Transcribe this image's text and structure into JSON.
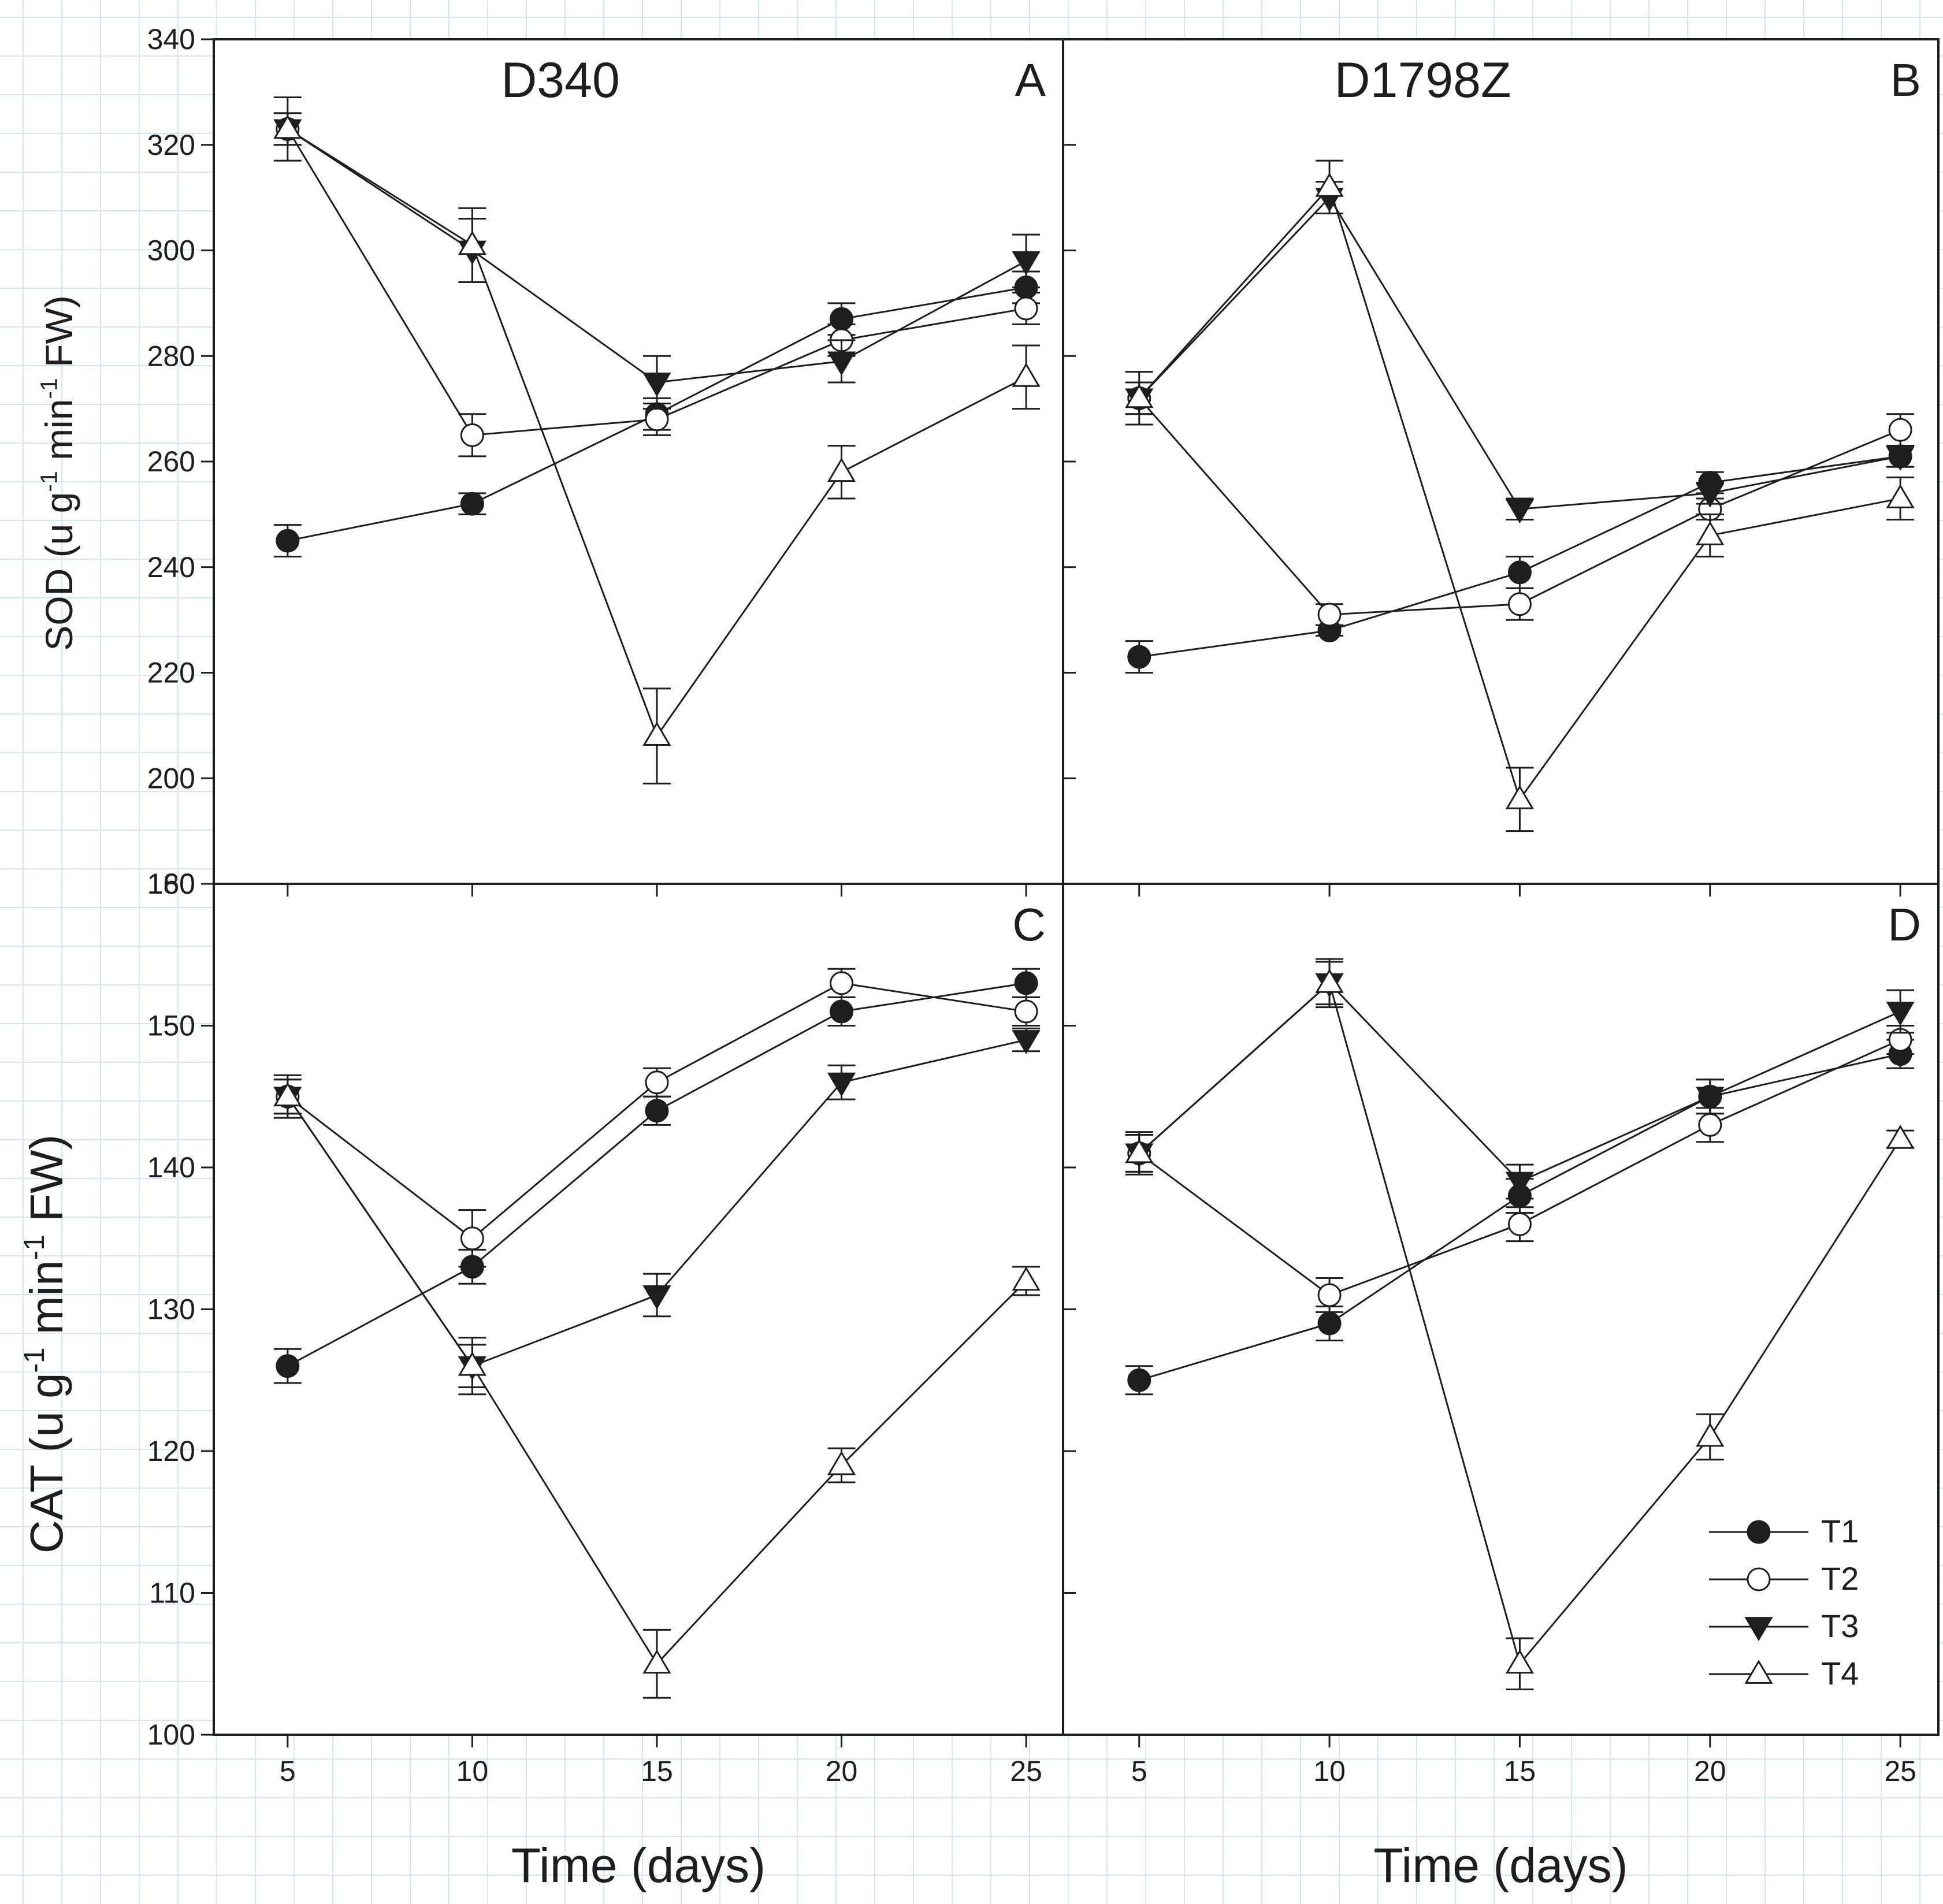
{
  "chart_data": {
    "type": "line",
    "x_label": "Time (days)",
    "x": [
      5,
      10,
      15,
      20,
      25
    ],
    "x_ticks": [
      "5",
      "10",
      "15",
      "20",
      "25"
    ],
    "rows": [
      {
        "y_label_main": "SOD (u g",
        "y_label_sup1": "-1",
        "y_label_mid": " min",
        "y_label_sup2": "-1",
        "y_label_end": " FW)",
        "ylim": [
          180,
          340
        ],
        "y_tick_values": [
          200,
          220,
          240,
          260,
          280,
          300,
          320,
          340
        ],
        "y_tick_labels": [
          "200",
          "220",
          "240",
          "260",
          "280",
          "300",
          "320",
          "340"
        ]
      },
      {
        "y_label_main": "CAT (u g",
        "y_label_sup1": "-1",
        "y_label_mid": " min",
        "y_label_sup2": "-1",
        "y_label_end": " FW)",
        "ylim": [
          100,
          160
        ],
        "y_tick_values": [
          100,
          110,
          120,
          130,
          140,
          150,
          160
        ],
        "y_tick_labels": [
          "100",
          "110",
          "120",
          "130",
          "140",
          "150",
          "160"
        ]
      }
    ],
    "boundary_overlap_label": "180",
    "legend": {
      "position": "bottom-right of panel D",
      "entries": [
        {
          "name": "T1",
          "marker": "filled-circle"
        },
        {
          "name": "T2",
          "marker": "open-circle"
        },
        {
          "name": "T3",
          "marker": "filled-triangle-down"
        },
        {
          "name": "T4",
          "marker": "open-triangle-up"
        }
      ]
    },
    "panels": [
      {
        "id": "A",
        "letter": "A",
        "title": "D340",
        "row": 0,
        "col": 0,
        "series": [
          {
            "name": "T1",
            "marker": "filled-circle",
            "values": [
              245,
              252,
              269,
              287,
              293
            ],
            "errors": [
              3,
              2,
              3,
              3,
              3
            ]
          },
          {
            "name": "T2",
            "marker": "open-circle",
            "values": [
              323,
              265,
              268,
              283,
              289
            ],
            "errors": [
              3,
              4,
              3,
              3,
              3
            ]
          },
          {
            "name": "T3",
            "marker": "filled-triangle-down",
            "values": [
              323,
              300,
              275,
              279,
              298
            ],
            "errors": [
              3,
              6,
              5,
              4,
              5
            ]
          },
          {
            "name": "T4",
            "marker": "open-triangle-up",
            "values": [
              323,
              301,
              208,
              258,
              276
            ],
            "errors": [
              6,
              7,
              9,
              5,
              6
            ]
          }
        ]
      },
      {
        "id": "B",
        "letter": "B",
        "title": "D1798Z",
        "row": 0,
        "col": 1,
        "series": [
          {
            "name": "T1",
            "marker": "filled-circle",
            "values": [
              223,
              228,
              239,
              256,
              261
            ],
            "errors": [
              3,
              1,
              3,
              2,
              2
            ]
          },
          {
            "name": "T2",
            "marker": "open-circle",
            "values": [
              272,
              231,
              233,
              251,
              266
            ],
            "errors": [
              3,
              2,
              3,
              2,
              3
            ]
          },
          {
            "name": "T3",
            "marker": "filled-triangle-down",
            "values": [
              272,
              310,
              251,
              254,
              261
            ],
            "errors": [
              3,
              3,
              2,
              2,
              2
            ]
          },
          {
            "name": "T4",
            "marker": "open-triangle-up",
            "values": [
              272,
              312,
              196,
              246,
              253
            ],
            "errors": [
              5,
              5,
              6,
              4,
              4
            ]
          }
        ]
      },
      {
        "id": "C",
        "letter": "C",
        "title": "",
        "row": 1,
        "col": 0,
        "series": [
          {
            "name": "T1",
            "marker": "filled-circle",
            "values": [
              126,
              133,
              144,
              151,
              153
            ],
            "errors": [
              1.2,
              1.2,
              1,
              1,
              1
            ]
          },
          {
            "name": "T2",
            "marker": "open-circle",
            "values": [
              145,
              135,
              146,
              153,
              151
            ],
            "errors": [
              1.2,
              2,
              1,
              1,
              1
            ]
          },
          {
            "name": "T3",
            "marker": "filled-triangle-down",
            "values": [
              145,
              126,
              131,
              146,
              149
            ],
            "errors": [
              1.2,
              1.5,
              1.5,
              1.2,
              0.8
            ]
          },
          {
            "name": "T4",
            "marker": "open-triangle-up",
            "values": [
              145,
              126,
              105,
              119,
              132
            ],
            "errors": [
              1.5,
              2,
              2.4,
              1.2,
              1
            ]
          }
        ]
      },
      {
        "id": "D",
        "letter": "D",
        "title": "",
        "row": 1,
        "col": 1,
        "series": [
          {
            "name": "T1",
            "marker": "filled-circle",
            "values": [
              125,
              129,
              138,
              145,
              148
            ],
            "errors": [
              1,
              1.2,
              1.2,
              1.2,
              1
            ]
          },
          {
            "name": "T2",
            "marker": "open-circle",
            "values": [
              141,
              131,
              136,
              143,
              149
            ],
            "errors": [
              1.3,
              1.2,
              1.2,
              1.2,
              1
            ]
          },
          {
            "name": "T3",
            "marker": "filled-triangle-down",
            "values": [
              141,
              153,
              139,
              145,
              151
            ],
            "errors": [
              1.3,
              1.5,
              1.2,
              1.2,
              1.5
            ]
          },
          {
            "name": "T4",
            "marker": "open-triangle-up",
            "values": [
              141,
              153,
              105,
              121,
              142
            ],
            "errors": [
              1.5,
              1.7,
              1.8,
              1.6,
              0.6
            ]
          }
        ]
      }
    ]
  }
}
